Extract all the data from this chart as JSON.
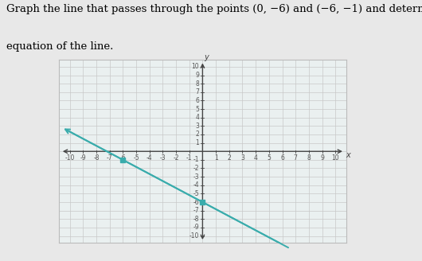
{
  "title_line1": "Graph the line that passes through the points (0, −6) and (−6, −1) and determine the",
  "title_line2": "equation of the line.",
  "point1": [
    0,
    -6
  ],
  "point2": [
    -6,
    -1
  ],
  "x_min": -10,
  "x_max": 10,
  "y_min": -10,
  "y_max": 10,
  "line_color": "#3aacac",
  "dot_color": "#3aacac",
  "line_width": 1.4,
  "grid_color": "#c8c8c8",
  "grid_color2": "#dde8e8",
  "plot_bg_color": "#eaf0f0",
  "fig_bg_color": "#e8e8e8",
  "tick_fontsize": 5.5,
  "title_fontsize": 9.5
}
